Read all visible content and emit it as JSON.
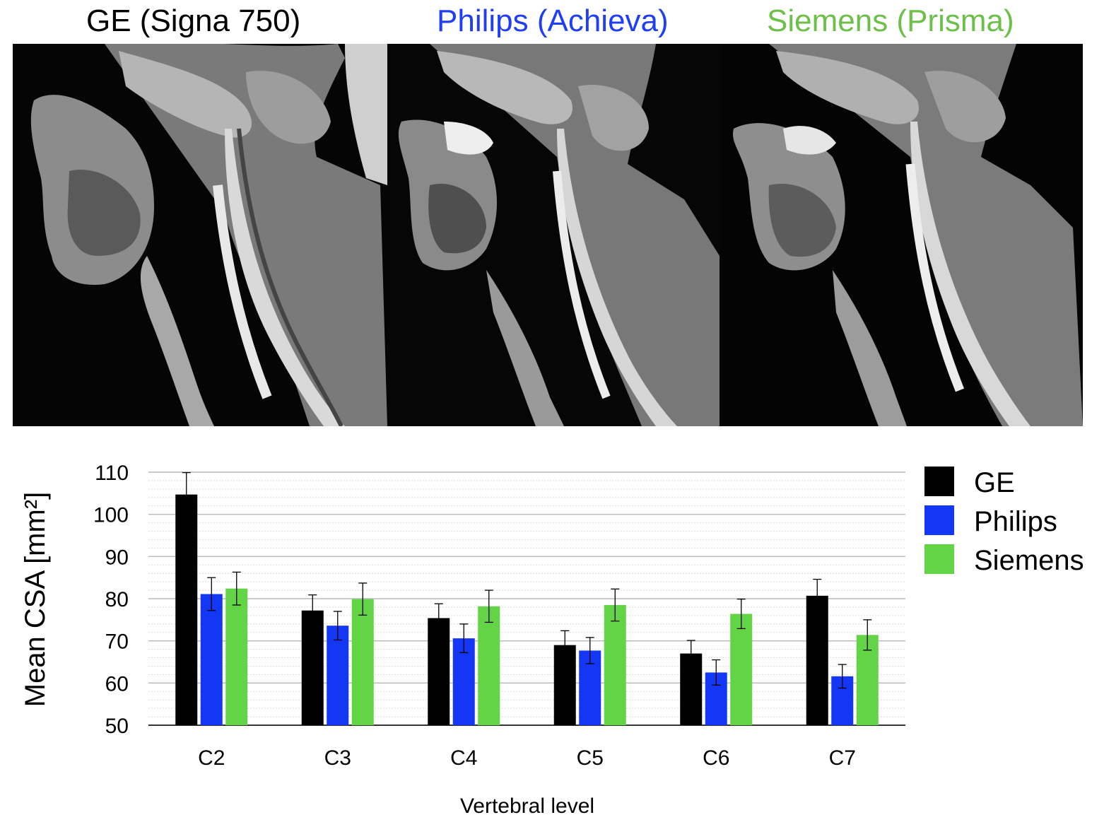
{
  "panels": [
    {
      "title": "GE (Signa 750)",
      "color": "#000000"
    },
    {
      "title": "Philips (Achieva)",
      "color": "#1f3ef5"
    },
    {
      "title": "Siemens (Prisma)",
      "color": "#6cc04a"
    }
  ],
  "chart_data": {
    "type": "bar",
    "xlabel": "Vertebral level",
    "ylabel": "Mean CSA [mm²]",
    "ylim": [
      50,
      110
    ],
    "yticks": [
      50,
      60,
      70,
      80,
      90,
      100,
      110
    ],
    "grid": "major and minor horizontal gridlines",
    "legend_position": "right",
    "categories": [
      "C2",
      "C3",
      "C4",
      "C5",
      "C6",
      "C7"
    ],
    "series": [
      {
        "name": "GE",
        "color": "#000000",
        "values": [
          104.7,
          77.2,
          75.4,
          69.0,
          67.0,
          80.7
        ],
        "error": [
          5.2,
          3.7,
          3.4,
          3.4,
          3.1,
          3.9
        ]
      },
      {
        "name": "Philips",
        "color": "#1437f5",
        "values": [
          81.1,
          73.6,
          70.6,
          67.7,
          62.5,
          61.6
        ],
        "error": [
          3.9,
          3.4,
          3.4,
          3.1,
          3.0,
          2.8
        ]
      },
      {
        "name": "Siemens",
        "color": "#62d446",
        "values": [
          82.4,
          79.9,
          78.2,
          78.5,
          76.4,
          71.4
        ],
        "error": [
          3.9,
          3.8,
          3.8,
          3.8,
          3.5,
          3.6
        ]
      }
    ]
  }
}
